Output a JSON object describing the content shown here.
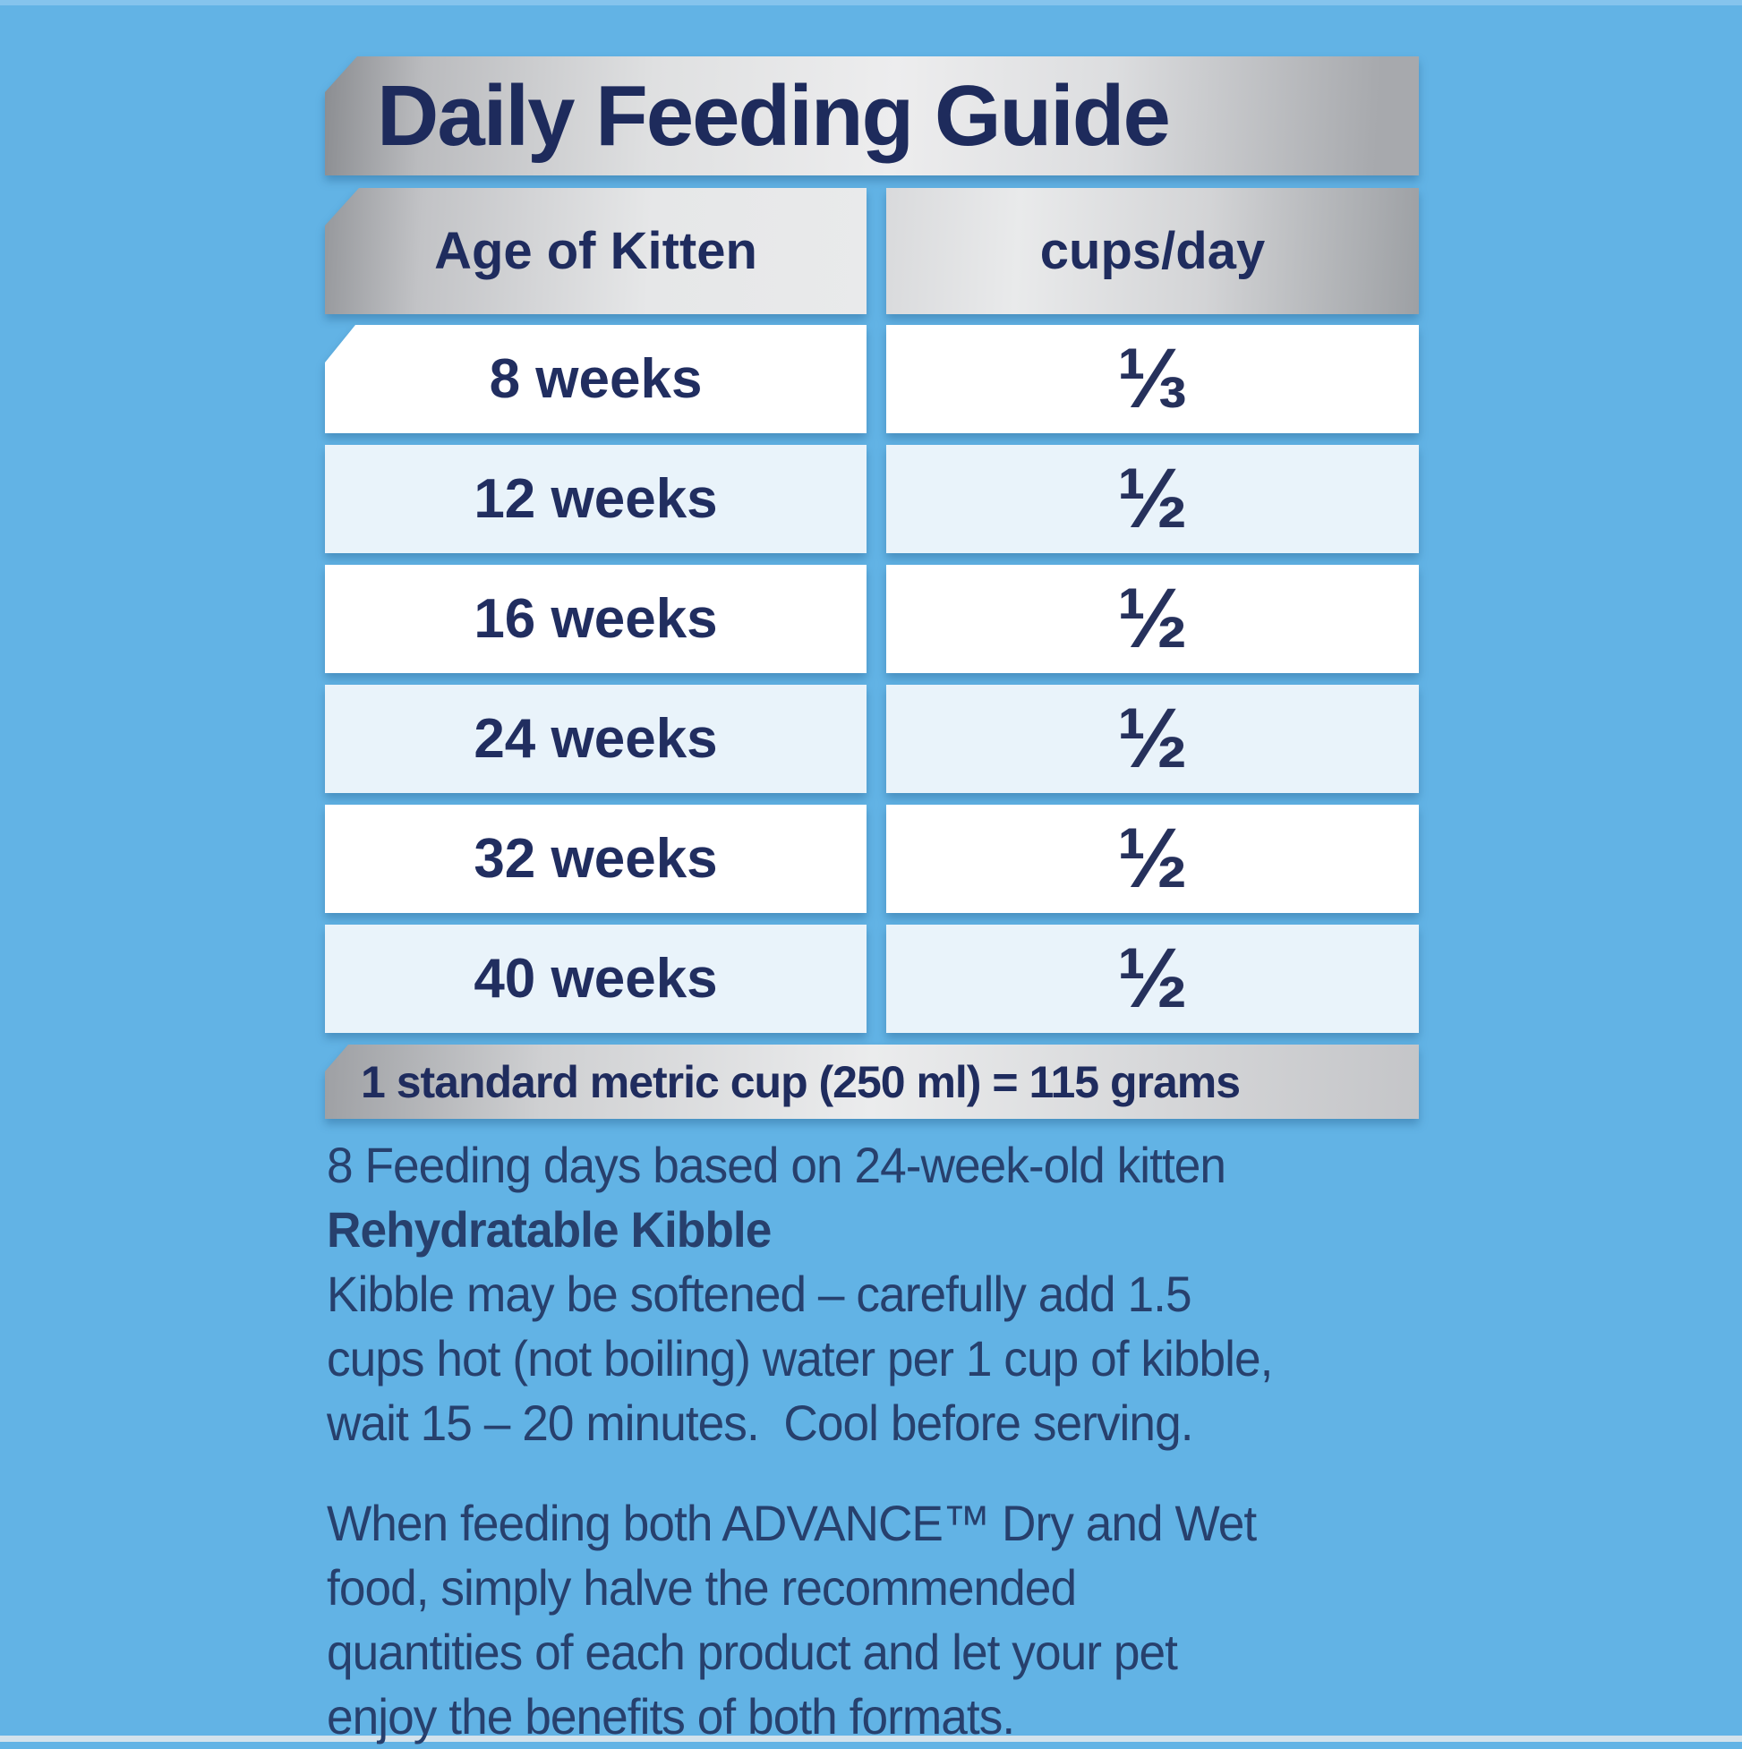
{
  "colors": {
    "background_blue": "#62b3e5",
    "row_alt_blue": "#e9f3fa",
    "navy_text": "#1f2c5e",
    "silver_bar": "#dcdddf"
  },
  "guide": {
    "title": "Daily Feeding Guide",
    "table": {
      "col1_header": "Age of Kitten",
      "col2_header": "cups/day",
      "rows": [
        {
          "age": "8 weeks",
          "cups": "⅓"
        },
        {
          "age": "12 weeks",
          "cups": "½"
        },
        {
          "age": "16 weeks",
          "cups": "½"
        },
        {
          "age": "24 weeks",
          "cups": "½"
        },
        {
          "age": "32 weeks",
          "cups": "½"
        },
        {
          "age": "40 weeks",
          "cups": "½"
        }
      ]
    },
    "cup_note": "1 standard metric cup (250 ml) = 115 grams",
    "feeding_note": {
      "line1": "8 Feeding days based on 24-week-old kitten",
      "line2_bold": "Rehydratable Kibble",
      "line3": "Kibble may be softened – carefully add 1.5",
      "line4": "cups hot (not boiling) water per 1 cup of kibble,",
      "line5": "wait 15 – 20 minutes.  Cool before serving."
    },
    "mixed_feeding_note": {
      "line1": "When feeding both ADVANCE™ Dry and Wet",
      "line2": "food, simply halve the recommended",
      "line3": "quantities of each product and let your pet",
      "line4": "enjoy the benefits of both formats."
    }
  }
}
